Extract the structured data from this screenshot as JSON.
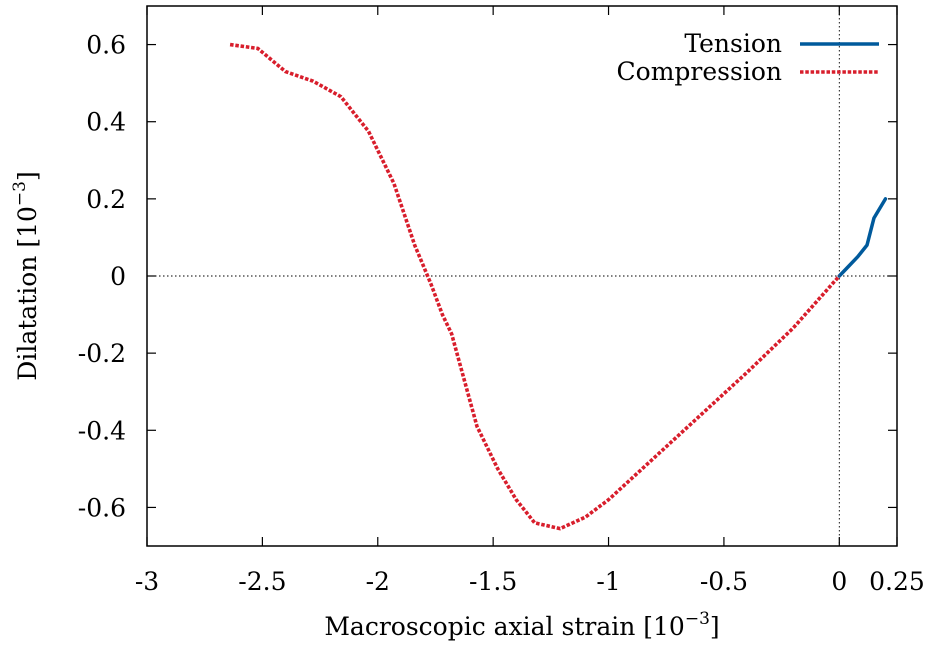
{
  "chart_data": {
    "type": "line",
    "xlabel": "Macroscopic axial strain [10",
    "xlabel_exp": "−3",
    "xlabel_close": "]",
    "ylabel": "Dilatation [10",
    "ylabel_exp": "−3",
    "ylabel_close": "]",
    "xlim": [
      -3,
      0.25
    ],
    "ylim": [
      -0.7,
      0.7
    ],
    "x_ticks": [
      {
        "value": -3,
        "label": "-3"
      },
      {
        "value": -2.5,
        "label": "-2.5"
      },
      {
        "value": -2,
        "label": "-2"
      },
      {
        "value": -1.5,
        "label": "-1.5"
      },
      {
        "value": -1,
        "label": "-1"
      },
      {
        "value": -0.5,
        "label": "-0.5"
      },
      {
        "value": 0,
        "label": "0"
      },
      {
        "value": 0.25,
        "label": "0.25"
      }
    ],
    "y_ticks": [
      {
        "value": 0.6,
        "label": "0.6"
      },
      {
        "value": 0.4,
        "label": "0.4"
      },
      {
        "value": 0.2,
        "label": "0.2"
      },
      {
        "value": 0,
        "label": "0"
      },
      {
        "value": -0.2,
        "label": "-0.2"
      },
      {
        "value": -0.4,
        "label": "-0.4"
      },
      {
        "value": -0.6,
        "label": "-0.6"
      }
    ],
    "zero_lines": {
      "x": 0,
      "y": 0
    },
    "grid": false,
    "legend_position": "top-right",
    "series": [
      {
        "name": "Tension",
        "color": "#005a9c",
        "style": "solid",
        "points": [
          [
            0,
            0
          ],
          [
            0.04,
            0.025
          ],
          [
            0.08,
            0.05
          ],
          [
            0.12,
            0.08
          ],
          [
            0.15,
            0.15
          ],
          [
            0.2,
            0.2
          ]
        ]
      },
      {
        "name": "Compression",
        "color": "#d81e2c",
        "style": "dotted",
        "points": [
          [
            -2.64,
            0.6
          ],
          [
            -2.52,
            0.59
          ],
          [
            -2.4,
            0.53
          ],
          [
            -2.28,
            0.505
          ],
          [
            -2.16,
            0.465
          ],
          [
            -2.04,
            0.375
          ],
          [
            -1.93,
            0.24
          ],
          [
            -1.84,
            0.08
          ],
          [
            -1.77,
            -0.02
          ],
          [
            -1.72,
            -0.1
          ],
          [
            -1.68,
            -0.15
          ],
          [
            -1.57,
            -0.39
          ],
          [
            -1.48,
            -0.5
          ],
          [
            -1.4,
            -0.58
          ],
          [
            -1.32,
            -0.64
          ],
          [
            -1.21,
            -0.655
          ],
          [
            -1.1,
            -0.625
          ],
          [
            -1.0,
            -0.58
          ],
          [
            -0.8,
            -0.47
          ],
          [
            -0.6,
            -0.36
          ],
          [
            -0.4,
            -0.25
          ],
          [
            -0.2,
            -0.135
          ],
          [
            0,
            0
          ]
        ]
      }
    ]
  }
}
